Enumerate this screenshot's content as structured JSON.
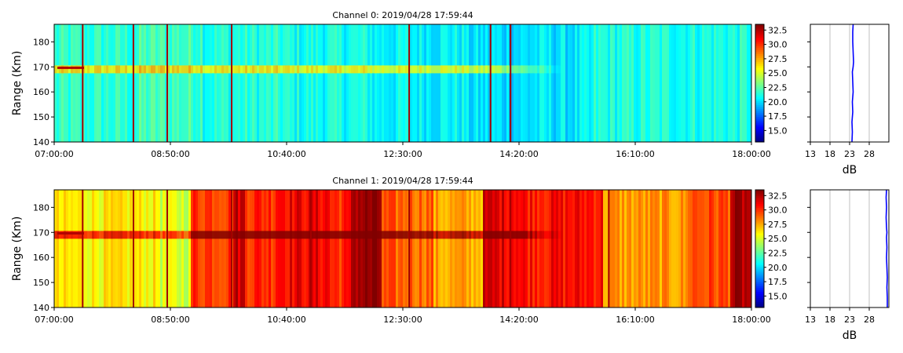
{
  "chart_data": [
    {
      "type": "heatmap",
      "title": "Channel 0: 2019/04/28 17:59:44",
      "ylabel": "Range (Km)",
      "xlabel": "",
      "x_ticks": [
        "07:00:00",
        "08:50:00",
        "10:40:00",
        "12:30:00",
        "14:20:00",
        "16:10:00",
        "18:00:00"
      ],
      "x_range": [
        "07:00:00",
        "18:00:00"
      ],
      "y_ticks": [
        140,
        150,
        160,
        170,
        180
      ],
      "ylim": [
        140,
        187
      ],
      "colorbar": {
        "ticks": [
          15.0,
          17.5,
          20.0,
          22.5,
          25.0,
          27.5,
          30.0,
          32.5
        ],
        "range": [
          13.0,
          33.5
        ],
        "colormap": "jet"
      },
      "echo_layer": {
        "range_km": 169,
        "start": "07:00:00",
        "end": "15:00:00"
      },
      "background_db": [
        {
          "start": "07:00",
          "end": "08:20",
          "db": 21.5
        },
        {
          "start": "08:20",
          "end": "09:20",
          "db": 22.0
        },
        {
          "start": "09:20",
          "end": "10:40",
          "db": 21.3
        },
        {
          "start": "10:40",
          "end": "12:00",
          "db": 21.0
        },
        {
          "start": "12:00",
          "end": "13:30",
          "db": 20.6
        },
        {
          "start": "13:30",
          "end": "14:30",
          "db": 20.0
        },
        {
          "start": "14:30",
          "end": "15:30",
          "db": 20.2
        },
        {
          "start": "15:30",
          "end": "18:00",
          "db": 21.2
        }
      ],
      "spike_times": [
        "07:27",
        "08:15",
        "08:47",
        "09:48",
        "12:36",
        "13:53",
        "14:12"
      ],
      "profile": {
        "xlabel": "dB",
        "x_ticks": [
          13,
          18,
          23,
          28
        ],
        "xlim": [
          13,
          33
        ],
        "ylim": [
          140,
          187
        ],
        "line_color": "#0000ff",
        "x": [
          23.6,
          23.7,
          23.6,
          23.8,
          23.7,
          23.9,
          23.8,
          23.7,
          23.9,
          24.0,
          23.9,
          23.8,
          23.8,
          23.9
        ],
        "y": [
          140,
          144,
          148,
          152,
          156,
          160,
          164,
          168,
          170,
          172,
          176,
          180,
          184,
          187
        ]
      }
    },
    {
      "type": "heatmap",
      "title": "Channel 1: 2019/04/28 17:59:44",
      "ylabel": "Range (Km)",
      "xlabel": "",
      "x_ticks": [
        "07:00:00",
        "08:50:00",
        "10:40:00",
        "12:30:00",
        "14:20:00",
        "16:10:00",
        "18:00:00"
      ],
      "x_range": [
        "07:00:00",
        "18:00:00"
      ],
      "y_ticks": [
        140,
        150,
        160,
        170,
        180
      ],
      "ylim": [
        140,
        187
      ],
      "colorbar": {
        "ticks": [
          15.0,
          17.5,
          20.0,
          22.5,
          25.0,
          27.5,
          30.0,
          32.5
        ],
        "range": [
          13.0,
          33.5
        ],
        "colormap": "jet"
      },
      "echo_layer": {
        "range_km": 169,
        "start": "07:00:00",
        "end": "15:00:00"
      },
      "background_db": [
        {
          "start": "07:00",
          "end": "08:40",
          "db": 26.0
        },
        {
          "start": "08:40",
          "end": "09:10",
          "db": 25.0
        },
        {
          "start": "09:10",
          "end": "09:50",
          "db": 30.0
        },
        {
          "start": "09:50",
          "end": "10:00",
          "db": 32.0
        },
        {
          "start": "10:00",
          "end": "10:30",
          "db": 30.3
        },
        {
          "start": "10:30",
          "end": "11:20",
          "db": 31.2
        },
        {
          "start": "11:20",
          "end": "11:40",
          "db": 30.2
        },
        {
          "start": "11:40",
          "end": "12:10",
          "db": 33.0
        },
        {
          "start": "12:10",
          "end": "13:00",
          "db": 29.0
        },
        {
          "start": "13:00",
          "end": "13:45",
          "db": 27.5
        },
        {
          "start": "13:45",
          "end": "14:20",
          "db": 31.5
        },
        {
          "start": "14:20",
          "end": "15:40",
          "db": 30.8
        },
        {
          "start": "15:40",
          "end": "17:00",
          "db": 27.8
        },
        {
          "start": "17:00",
          "end": "17:40",
          "db": 29.5
        },
        {
          "start": "17:40",
          "end": "18:00",
          "db": 32.5
        }
      ],
      "spike_times": [
        "07:27",
        "08:15",
        "08:47",
        "09:48",
        "11:03",
        "12:36",
        "14:12",
        "15:45"
      ],
      "profile": {
        "xlabel": "dB",
        "x_ticks": [
          13,
          18,
          23,
          28
        ],
        "xlim": [
          13,
          33
        ],
        "ylim": [
          140,
          187
        ],
        "line_color": "#0000ff",
        "x": [
          32.6,
          32.6,
          32.5,
          32.6,
          32.5,
          32.4,
          32.5,
          32.4,
          32.5,
          32.4,
          32.3,
          32.4,
          32.3,
          32.4
        ],
        "y": [
          140,
          144,
          148,
          152,
          156,
          160,
          164,
          168,
          170,
          172,
          176,
          180,
          184,
          187
        ]
      }
    }
  ]
}
